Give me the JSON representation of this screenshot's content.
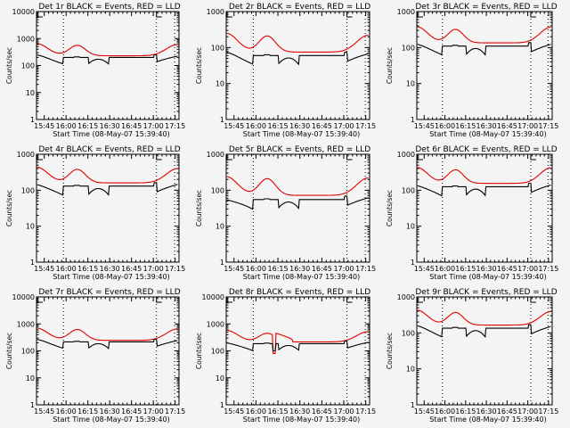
{
  "figure": {
    "background": "#f4f4f4",
    "colors": {
      "events": "#000000",
      "lld": "#e00000",
      "axis": "#000000"
    }
  },
  "chart_data": [
    {
      "type": "line",
      "title": "Det 1r BLACK = Events, RED = LLD",
      "xlabel": "Start Time (08-May-07 15:39:40)",
      "ylabel": "Counts/sec",
      "yscale": "log",
      "ylim": [
        1,
        10000
      ],
      "yticks": [
        "1",
        "10",
        "100",
        "1000",
        "10000"
      ],
      "xticks": [
        "15:45",
        "16:00",
        "16:15",
        "16:30",
        "16:45",
        "17:00",
        "17:15"
      ],
      "xlim_min": [
        0,
        98
      ],
      "vlines_min": [
        18.5,
        82.5,
        95
      ],
      "markers": [
        "E",
        "E"
      ],
      "series": [
        {
          "name": "LLD",
          "color": "red",
          "base": 230,
          "peak": [
            [
              0,
              650
            ],
            [
              28,
              560
            ],
            [
              98,
              600
            ]
          ]
        },
        {
          "name": "Events",
          "color": "black",
          "base": 200,
          "peak": [
            [
              0,
              250
            ],
            [
              28,
              220
            ],
            [
              98,
              230
            ]
          ]
        }
      ]
    },
    {
      "type": "line",
      "title": "Det 2r BLACK = Events, RED = LLD",
      "xlabel": "Start Time (08-May-07 15:39:40)",
      "ylabel": "Counts/sec",
      "yscale": "log",
      "ylim": [
        1,
        1000
      ],
      "yticks": [
        "1",
        "10",
        "100",
        "1000"
      ],
      "xticks": [
        "15:45",
        "16:00",
        "16:15",
        "16:30",
        "16:45",
        "17:00",
        "17:15"
      ],
      "xlim_min": [
        0,
        98
      ],
      "vlines_min": [
        18.5,
        82.5,
        95
      ],
      "markers": [
        "E",
        "E"
      ],
      "series": [
        {
          "name": "LLD",
          "color": "red",
          "base": 75,
          "peak": [
            [
              0,
              250
            ],
            [
              28,
              210
            ],
            [
              98,
              220
            ]
          ]
        },
        {
          "name": "Events",
          "color": "black",
          "base": 60,
          "peak": [
            [
              0,
              75
            ],
            [
              28,
              65
            ],
            [
              98,
              70
            ]
          ]
        }
      ]
    },
    {
      "type": "line",
      "title": "Det 3r BLACK = Events, RED = LLD",
      "xlabel": "Start Time (08-May-07 15:39:40)",
      "ylabel": "Counts/sec",
      "yscale": "log",
      "ylim": [
        1,
        1000
      ],
      "yticks": [
        "1",
        "10",
        "100",
        "1000"
      ],
      "xticks": [
        "15:45",
        "16:00",
        "16:15",
        "16:30",
        "16:45",
        "17:00",
        "17:15"
      ],
      "xlim_min": [
        0,
        98
      ],
      "vlines_min": [
        18.5,
        82.5,
        95
      ],
      "markers": [
        "E",
        "E"
      ],
      "series": [
        {
          "name": "LLD",
          "color": "red",
          "base": 135,
          "peak": [
            [
              0,
              380
            ],
            [
              28,
              320
            ],
            [
              98,
              370
            ]
          ]
        },
        {
          "name": "Events",
          "color": "black",
          "base": 110,
          "peak": [
            [
              0,
              125
            ],
            [
              28,
              115
            ],
            [
              98,
              120
            ]
          ]
        }
      ]
    },
    {
      "type": "line",
      "title": "Det 4r BLACK = Events, RED = LLD",
      "xlabel": "Start Time (08-May-07 15:39:40)",
      "ylabel": "Counts/sec",
      "yscale": "log",
      "ylim": [
        1,
        1000
      ],
      "yticks": [
        "1",
        "10",
        "100",
        "1000"
      ],
      "xticks": [
        "15:45",
        "16:00",
        "16:15",
        "16:30",
        "16:45",
        "17:00",
        "17:15"
      ],
      "xlim_min": [
        0,
        98
      ],
      "vlines_min": [
        18.5,
        82.5,
        95
      ],
      "markers": [
        "E",
        "E"
      ],
      "series": [
        {
          "name": "LLD",
          "color": "red",
          "base": 160,
          "peak": [
            [
              0,
              440
            ],
            [
              28,
              380
            ],
            [
              98,
              400
            ]
          ]
        },
        {
          "name": "Events",
          "color": "black",
          "base": 130,
          "peak": [
            [
              0,
              145
            ],
            [
              28,
              130
            ],
            [
              98,
              135
            ]
          ]
        }
      ]
    },
    {
      "type": "line",
      "title": "Det 5r BLACK = Events, RED = LLD",
      "xlabel": "Start Time (08-May-07 15:39:40)",
      "ylabel": "Counts/sec",
      "yscale": "log",
      "ylim": [
        1,
        1000
      ],
      "yticks": [
        "1",
        "10",
        "100",
        "1000"
      ],
      "xticks": [
        "15:45",
        "16:00",
        "16:15",
        "16:30",
        "16:45",
        "17:00",
        "17:15"
      ],
      "xlim_min": [
        0,
        98
      ],
      "vlines_min": [
        18.5,
        82.5,
        95
      ],
      "markers": [
        "E",
        "E"
      ],
      "series": [
        {
          "name": "LLD",
          "color": "red",
          "base": 72,
          "peak": [
            [
              0,
              240
            ],
            [
              28,
              210
            ],
            [
              98,
              220
            ]
          ]
        },
        {
          "name": "Events",
          "color": "black",
          "base": 55,
          "peak": [
            [
              0,
              55
            ],
            [
              28,
              45
            ],
            [
              98,
              48
            ]
          ]
        }
      ]
    },
    {
      "type": "line",
      "title": "Det 6r BLACK = Events, RED = LLD",
      "xlabel": "Start Time (08-May-07 15:39:40)",
      "ylabel": "Counts/sec",
      "yscale": "log",
      "ylim": [
        1,
        1000
      ],
      "yticks": [
        "1",
        "10",
        "100",
        "1000"
      ],
      "xticks": [
        "15:45",
        "16:00",
        "16:15",
        "16:30",
        "16:45",
        "17:00",
        "17:15"
      ],
      "xlim_min": [
        0,
        98
      ],
      "vlines_min": [
        18.5,
        82.5,
        95
      ],
      "markers": [
        "E",
        "E"
      ],
      "series": [
        {
          "name": "LLD",
          "color": "red",
          "base": 155,
          "peak": [
            [
              0,
              430
            ],
            [
              28,
              370
            ],
            [
              98,
              420
            ]
          ]
        },
        {
          "name": "Events",
          "color": "black",
          "base": 125,
          "peak": [
            [
              0,
              135
            ],
            [
              28,
              120
            ],
            [
              98,
              130
            ]
          ]
        }
      ]
    },
    {
      "type": "line",
      "title": "Det 7r BLACK = Events, RED = LLD",
      "xlabel": "Start Time (08-May-07 15:39:40)",
      "ylabel": "Counts/sec",
      "yscale": "log",
      "ylim": [
        1,
        10000
      ],
      "yticks": [
        "1",
        "10",
        "100",
        "1000",
        "10000"
      ],
      "xticks": [
        "15:45",
        "16:00",
        "16:15",
        "16:30",
        "16:45",
        "17:00",
        "17:15"
      ],
      "xlim_min": [
        0,
        98
      ],
      "vlines_min": [
        18.5,
        82.5,
        95
      ],
      "markers": [
        "E",
        "E"
      ],
      "series": [
        {
          "name": "LLD",
          "color": "red",
          "base": 245,
          "peak": [
            [
              0,
              700
            ],
            [
              28,
              620
            ],
            [
              98,
              650
            ]
          ]
        },
        {
          "name": "Events",
          "color": "black",
          "base": 215,
          "peak": [
            [
              0,
              270
            ],
            [
              28,
              250
            ],
            [
              98,
              260
            ]
          ]
        }
      ]
    },
    {
      "type": "line",
      "title": "Det 8r BLACK = Events, RED = LLD",
      "xlabel": "Start Time (08-May-07 15:39:40)",
      "ylabel": "Counts/sec",
      "yscale": "log",
      "ylim": [
        1,
        10000
      ],
      "yticks": [
        "1",
        "10",
        "100",
        "1000",
        "10000"
      ],
      "xticks": [
        "15:45",
        "16:00",
        "16:15",
        "16:30",
        "16:45",
        "17:00",
        "17:15"
      ],
      "xlim_min": [
        0,
        98
      ],
      "vlines_min": [
        18.5,
        82.5,
        95
      ],
      "markers": [
        "E",
        "E"
      ],
      "dip": {
        "start_min": 32,
        "end_min": 45,
        "red": 80,
        "black": 100
      },
      "series": [
        {
          "name": "LLD",
          "color": "red",
          "base": 215,
          "peak": [
            [
              0,
              580
            ],
            [
              28,
              450
            ],
            [
              98,
              520
            ]
          ]
        },
        {
          "name": "Events",
          "color": "black",
          "base": 185,
          "peak": [
            [
              0,
              200
            ],
            [
              28,
              170
            ],
            [
              98,
              195
            ]
          ]
        }
      ]
    },
    {
      "type": "line",
      "title": "Det 9r BLACK = Events, RED = LLD",
      "xlabel": "Start Time (08-May-07 15:39:40)",
      "ylabel": "Counts/sec",
      "yscale": "log",
      "ylim": [
        1,
        1000
      ],
      "yticks": [
        "1",
        "10",
        "100",
        "1000"
      ],
      "xticks": [
        "15:45",
        "16:00",
        "16:15",
        "16:30",
        "16:45",
        "17:00",
        "17:15"
      ],
      "xlim_min": [
        0,
        98
      ],
      "vlines_min": [
        18.5,
        82.5,
        95
      ],
      "markers": [
        "E",
        "E"
      ],
      "series": [
        {
          "name": "LLD",
          "color": "red",
          "base": 165,
          "peak": [
            [
              0,
              430
            ],
            [
              28,
              370
            ],
            [
              98,
              390
            ]
          ]
        },
        {
          "name": "Events",
          "color": "black",
          "base": 135,
          "peak": [
            [
              0,
              160
            ],
            [
              28,
              145
            ],
            [
              98,
              150
            ]
          ]
        }
      ]
    }
  ]
}
